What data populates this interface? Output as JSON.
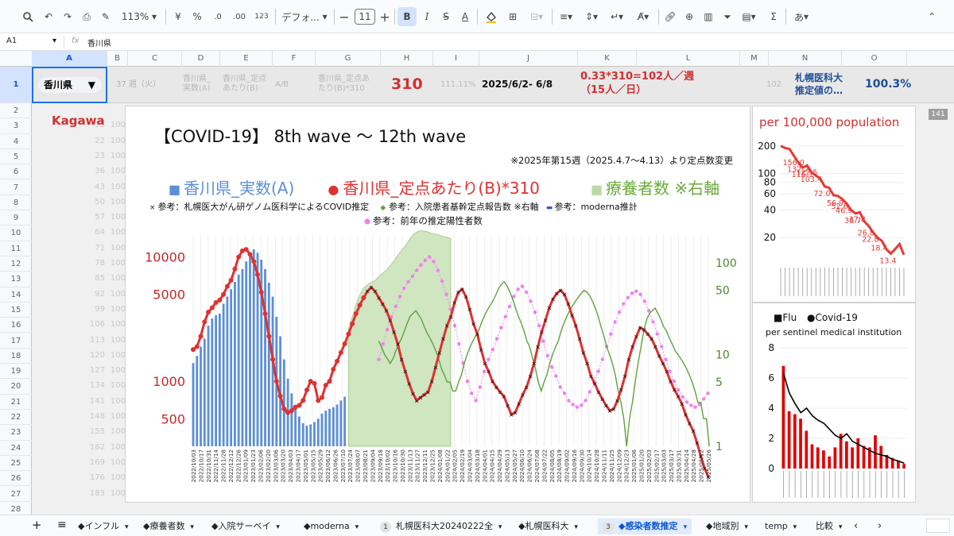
{
  "toolbar": {
    "zoom": "113%",
    "currency": "¥",
    "percent": "%",
    "dec_less": ".0",
    "dec_more": ".00",
    "numfmt": "123",
    "font": "デフォ...",
    "font_size": "11",
    "text_color": "#000000",
    "fill_color": "#fbbc04",
    "input_tool": "あ"
  },
  "formula": {
    "cell_ref": "A1",
    "fx": "fx",
    "value": "香川県"
  },
  "columns": [
    "A",
    "B",
    "C",
    "D",
    "E",
    "F",
    "G",
    "H",
    "I",
    "J",
    "K",
    "L",
    "M",
    "N",
    "O"
  ],
  "rows": [
    "1",
    "2",
    "3",
    "4",
    "5",
    "6",
    "7",
    "8",
    "9",
    "10",
    "11",
    "12",
    "13",
    "14",
    "15",
    "16",
    "17",
    "18",
    "19",
    "20",
    "21",
    "22",
    "23",
    "24",
    "25",
    "26",
    "27",
    "28"
  ],
  "row1": {
    "dropdown": "香川県",
    "week": "37 週（火）",
    "d_label": "香川県_\n実数(A)",
    "e_label": "香川県_定点\nあたり(B)",
    "f_label": "A/B",
    "g_label": "香川県_定点あ\nたり(B)*310",
    "h_value": "310",
    "i_value": "111.11%",
    "j_value": "2025/6/2- 6/8",
    "k_value": "0.33*310=102人／週\n（15人／日）",
    "m_value": "102",
    "n_value": "札幌医科大\n推定値の…",
    "o_value": "100.3%"
  },
  "kagawa_label": "Kagawa",
  "side_badge": "141",
  "faded_col_b": [
    "15",
    "22",
    "23",
    "36",
    "43",
    "50",
    "57",
    "64",
    "71",
    "78",
    "85",
    "92",
    "99",
    "106",
    "113",
    "120",
    "127",
    "134",
    "141",
    "148",
    "155",
    "162",
    "169",
    "176",
    "183"
  ],
  "faded_col_c": [
    "100",
    "100",
    "100",
    "100",
    "100",
    "100",
    "100",
    "100",
    "100",
    "100",
    "100",
    "100",
    "100",
    "100",
    "100",
    "100",
    "100",
    "100",
    "100",
    "100",
    "100",
    "100",
    "100",
    "100",
    "100"
  ],
  "main_chart": {
    "title": "【COVID-19】 8th wave 〜 12th wave",
    "note": "※2025年第15週（2025.4.7〜4.13）より定点数変更",
    "legend1": [
      {
        "sym": "■",
        "text": "香川県_実数(A)",
        "color": "#5b8fd6"
      },
      {
        "sym": "●",
        "text": "香川県_定点あたり(B)*310",
        "color": "#e03030"
      },
      {
        "sym": "■",
        "text": "療養者数 ※右軸",
        "color": "#6aaa3a",
        "symcolor": "#b9dba6"
      }
    ],
    "legend2": [
      {
        "sym": "×",
        "text": "参考：札幌医大がん研ゲノム医科学によるCOVID推定",
        "color": "#222"
      },
      {
        "sym": "◆",
        "text": "参考：入院患者基幹定点報告数 ※右軸",
        "color": "#5fa33e"
      },
      {
        "sym": "▬",
        "text": "参考：moderna推計",
        "color": "#3355cc"
      }
    ],
    "legend3": [
      {
        "sym": "⬟",
        "text": "参考：前年の推定陽性者数",
        "color": "#f07ef0"
      }
    ],
    "left_ticks": [
      {
        "label": "10000",
        "v": 10000
      },
      {
        "label": "5000",
        "v": 5000
      },
      {
        "label": "1000",
        "v": 1000
      },
      {
        "label": "500",
        "v": 500
      }
    ],
    "right_ticks": [
      {
        "label": "100",
        "v": 100
      },
      {
        "label": "50",
        "v": 50
      },
      {
        "label": "10",
        "v": 10
      },
      {
        "label": "5",
        "v": 5
      },
      {
        "label": "1",
        "v": 1
      }
    ],
    "x_labels": [
      "2022/10/03",
      "2022/10/17",
      "2022/10/31",
      "2022/11/14",
      "2022/11/28",
      "2022/12/12",
      "2022/12/26",
      "2023/01/09",
      "2023/01/23",
      "2023/02/06",
      "2023/02/20",
      "2023/03/06",
      "2023/03/20",
      "2023/04/03",
      "2023/04/17",
      "2023/05/01",
      "2023/05/15",
      "2023/05/29",
      "2023/06/12",
      "2023/06/26",
      "2023/07/10",
      "2023/07/24",
      "2023/08/07",
      "2023/08/21",
      "2023/09/04",
      "2023/09/18",
      "2023/10/02",
      "2023/10/16",
      "2023/10/30",
      "2023/11/13",
      "2023/11/27",
      "2023/12/11",
      "2023/12/25",
      "2024/01/08",
      "2024/01/22",
      "2024/02/05",
      "2024/02/19",
      "2024/03/04",
      "2024/03/18",
      "2024/04/01",
      "2024/04/15",
      "2024/04/29",
      "2024/05/13",
      "2024/05/27",
      "2024/06/10",
      "2024/06/24",
      "2024/07/08",
      "2024/07/22",
      "2024/08/05",
      "2024/08/19",
      "2024/09/02",
      "2024/09/16",
      "2024/09/30",
      "2024/10/14",
      "2024/10/28",
      "2024/11/11",
      "2024/11/25",
      "2024/12/09",
      "2024/12/23",
      "2025/01/06",
      "2025/01/20",
      "2025/02/03",
      "2025/02/17",
      "2025/03/03",
      "2025/03/17",
      "2025/03/31",
      "2025/04/14",
      "2025/04/28",
      "2025/05/12",
      "2025/05/26"
    ]
  },
  "chart_data": [
    {
      "type": "bar",
      "title": "【COVID-19】 8th wave 〜 12th wave",
      "series": [
        {
          "name": "香川県_実数(A)",
          "x_start": "2022/10/03",
          "values": [
            1400,
            1600,
            1900,
            2200,
            2800,
            3200,
            3400,
            3500,
            4200,
            4800,
            5500,
            6300,
            7200,
            8000,
            9200,
            10500,
            11500,
            10800,
            9500,
            8000,
            6200,
            4800,
            3300,
            2300,
            1500,
            1050,
            800,
            620,
            520,
            460,
            440,
            450,
            470,
            500,
            550,
            580,
            600,
            620,
            650,
            700,
            750
          ]
        },
        {
          "name": "療養者数 ※右軸",
          "type": "area",
          "x_start": "2023/05/15",
          "values": [
            12,
            16,
            22,
            28,
            33,
            36,
            38,
            40,
            44,
            48,
            52,
            58,
            65,
            75,
            85,
            95,
            110,
            125,
            135,
            140,
            138,
            135,
            130,
            128,
            125,
            120,
            118,
            115
          ]
        }
      ]
    },
    {
      "type": "line",
      "title": "【COVID-19】 8th wave 〜 12th wave",
      "series": [
        {
          "name": "香川県_定点あたり(B)*310",
          "values": [
            1800,
            1900,
            2300,
            3000,
            3600,
            3900,
            4300,
            4500,
            5000,
            5800,
            6500,
            8000,
            10000,
            11200,
            11500,
            10500,
            9200,
            7200,
            5200,
            3500,
            2300,
            1500,
            1000,
            760,
            600,
            560,
            580,
            620,
            640,
            700,
            850,
            1000,
            960,
            700,
            740,
            930,
            1000,
            1250,
            1450,
            1700,
            2000,
            2400,
            2900,
            3500,
            4100,
            4700,
            5300,
            5700,
            5300,
            4700,
            4200,
            3700,
            3100,
            2500,
            2000,
            1500,
            1200,
            960,
            800,
            700,
            740,
            780,
            820,
            1000,
            1300,
            1700,
            2200,
            2800,
            3300,
            4300,
            5200,
            5500,
            4800,
            3800,
            2900,
            2400,
            1800,
            1400,
            1200,
            1000,
            900,
            820,
            760,
            640,
            540,
            560,
            660,
            780,
            900,
            1100,
            1400,
            1900,
            2500,
            3100,
            3900,
            4600,
            5100,
            5400,
            5000,
            4200,
            3400,
            2800,
            2200,
            1700,
            1400,
            1100,
            960,
            820,
            720,
            640,
            580,
            600,
            700,
            860,
            1100,
            1500,
            1900,
            2300,
            2700,
            2600,
            2400,
            2200,
            1900,
            1600,
            1400,
            1200,
            1000,
            860,
            760,
            660,
            540,
            460,
            400,
            320,
            250,
            200,
            170
          ]
        },
        {
          "name": "参考：入院患者基幹定点報告数 ※右軸",
          "values": [
            14,
            12,
            10,
            9,
            8,
            9,
            11,
            13,
            15,
            18,
            22,
            26,
            28,
            30,
            27,
            24,
            20,
            17,
            15,
            13,
            11,
            9,
            7,
            6,
            5,
            5,
            4,
            4,
            5,
            6,
            8,
            10,
            12,
            14,
            16,
            18,
            22,
            26,
            30,
            34,
            38,
            44,
            52,
            58,
            62,
            56,
            48,
            40,
            32,
            26,
            22,
            18,
            14,
            12,
            9,
            7,
            5,
            4,
            5,
            6,
            8,
            10,
            12,
            14,
            18,
            22,
            26,
            30,
            34,
            38,
            42,
            46,
            50,
            48,
            44,
            38,
            32,
            26,
            20,
            16,
            12,
            10,
            8,
            6,
            4,
            3,
            2,
            1,
            2,
            3,
            5,
            8,
            12,
            18,
            24,
            28,
            30,
            32,
            28,
            24,
            20,
            18,
            15,
            13,
            11,
            10,
            9,
            8,
            7,
            6,
            5,
            4,
            3,
            3,
            2,
            2,
            1
          ]
        },
        {
          "name": "参考：前年の推定陽性者数",
          "values": [
            1500,
            2000,
            2600,
            3300,
            4000,
            4800,
            5600,
            6300,
            7000,
            7800,
            8600,
            9400,
            10000,
            9200,
            7800,
            6400,
            5000,
            3800,
            2800,
            2000,
            1400,
            1000,
            800,
            700,
            900,
            1200,
            1500,
            1800,
            2200,
            2700,
            3300,
            4000,
            4800,
            5500,
            5800,
            5200,
            4400,
            3600,
            2800,
            2100,
            1600,
            1300,
            1100,
            900,
            800,
            700,
            650,
            620,
            640,
            700,
            820,
            980,
            1200,
            1500,
            1900,
            2400,
            3000,
            3600,
            4200,
            4700,
            5100,
            5300,
            5000,
            4400,
            3700,
            3000,
            2400,
            1900,
            1500,
            1200,
            1000,
            850,
            750,
            680,
            640,
            620,
            650,
            720,
            800
          ]
        }
      ],
      "ylabel_left": "",
      "ylabel_right": "",
      "y_scale": "log",
      "ylim": [
        300,
        15000
      ],
      "y2lim": [
        1,
        200
      ],
      "legend": "top"
    },
    {
      "type": "line",
      "title": "per 100,000 population",
      "y_scale": "log",
      "ylim": [
        10,
        220
      ],
      "series": [
        {
          "name": "per 100,000 population",
          "values": [
            200,
            190,
            185,
            156,
            132.2,
            116.1,
            122.5,
            103.4,
            95,
            88,
            72.0,
            70,
            58,
            56.9,
            52.6,
            46.9,
            40,
            36.7,
            37.8,
            30,
            26.8,
            22.8,
            20,
            18.4,
            15,
            13.4,
            15,
            17,
            13
          ]
        }
      ],
      "point_labels": [
        "156.0",
        "132.2",
        "116.1",
        "122.5",
        "103.4",
        "72.0",
        "56.9",
        "52.6",
        "46.9",
        "36.7",
        "37.8",
        "26.8",
        "22.8",
        "18.4",
        "13.4"
      ],
      "ytick_labels": [
        "200",
        "100",
        "80",
        "60",
        "40",
        "20"
      ]
    },
    {
      "type": "bar",
      "title": "per sentinel medical institution",
      "legend": [
        "■Flu",
        "●Covid-19"
      ],
      "ylim": [
        0,
        8
      ],
      "yticks": [
        0,
        2,
        4,
        6,
        8
      ],
      "series": [
        {
          "name": "■Flu",
          "values": [
            6.8,
            3.8,
            3.6,
            3.3,
            2.5,
            1.6,
            1.4,
            1.2,
            0.8,
            1.4,
            2.3,
            1.8,
            1.4,
            2.0,
            1.5,
            1.4,
            2.2,
            1.5,
            0.9,
            0.7,
            0.5,
            0.3
          ]
        },
        {
          "name": "●Covid-19",
          "values": [
            6.3,
            5.0,
            4.3,
            3.7,
            4.0,
            3.5,
            3.2,
            3.0,
            2.6,
            2.2,
            2.0,
            2.3,
            1.8,
            1.6,
            1.4,
            1.2,
            1.0,
            0.9,
            0.8,
            0.6,
            0.5,
            0.35
          ]
        }
      ]
    }
  ],
  "side_top": {
    "title": "per 100,000 population",
    "ytick": [
      "200",
      "100",
      "80",
      "60",
      "40",
      "20"
    ]
  },
  "side_bottom": {
    "legend_flu": "■Flu",
    "legend_covid": "●Covid-19",
    "subtitle": "per sentinel medical institution",
    "ytick": [
      "8",
      "6",
      "4",
      "2",
      "0"
    ]
  },
  "sheettabs": [
    "◆インフル",
    "◆療養者数",
    "◆入院サーベイ",
    "◆moderna",
    "札幌医科大20240222全",
    "◆札幌医科大",
    "◆感染者数推定",
    "◆地域別",
    "temp",
    "比較"
  ],
  "tab_badges": {
    "4": "1",
    "6": "3"
  },
  "active_tab": "◆感染者数推定",
  "colors": {
    "red": "#d32f2f",
    "blue_bar": "#5b8fd6",
    "green": "#6aaa3a",
    "pink": "#ee82ee",
    "accent": "#0b57d0"
  }
}
